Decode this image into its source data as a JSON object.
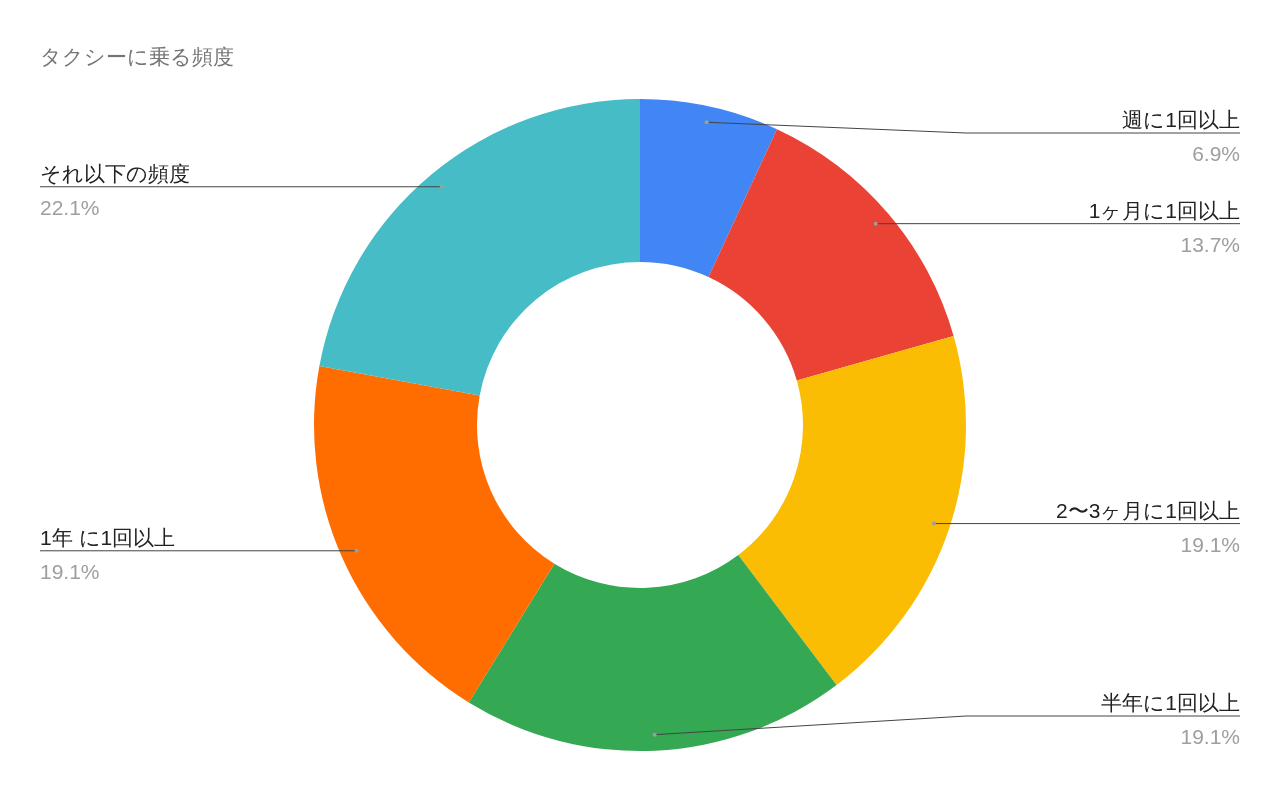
{
  "chart_data": {
    "type": "donut",
    "title": "タクシーに乗る頻度",
    "categories": [
      "週に1回以上",
      "1ヶ月に1回以上",
      "2〜3ヶ月に1回以上",
      "半年に1回以上",
      "1年 に1回以上",
      "それ以下の頻度"
    ],
    "values": [
      6.9,
      13.7,
      19.1,
      19.1,
      19.1,
      22.1
    ],
    "colors": [
      "#4285f4",
      "#ea4335",
      "#fbbc04",
      "#34a853",
      "#ff6d01",
      "#46bdc6"
    ],
    "value_labels": [
      "6.9%",
      "13.7%",
      "19.1%",
      "19.1%",
      "19.1%",
      "22.1%"
    ]
  }
}
